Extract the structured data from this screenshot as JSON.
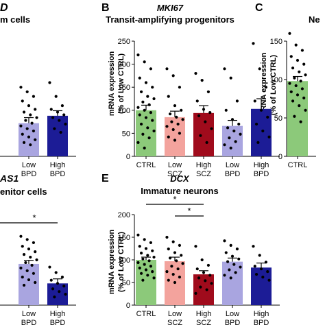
{
  "panel_letters": {
    "a": "",
    "b": "B",
    "c": "C",
    "d": "",
    "e": "E"
  },
  "chart_data": [
    {
      "id": "panel-a",
      "type": "bar",
      "title_italic": "D",
      "title": "m cells",
      "categories": [
        {
          "top": "Low",
          "bottom": "BPD"
        },
        {
          "top": "High",
          "bottom": "BPD"
        }
      ],
      "values": [
        72,
        88
      ],
      "errors": [
        12,
        11
      ],
      "colors": [
        "#a9a5e0",
        "#1c1c96"
      ],
      "ylim": [
        0,
        250
      ],
      "points": [
        [
          150,
          140,
          130,
          120,
          110,
          102,
          96,
          90,
          84,
          78,
          72,
          66,
          60,
          55,
          48,
          42,
          36,
          30,
          25
        ],
        [
          160,
          130,
          110,
          102,
          96,
          90,
          84,
          78,
          70,
          60,
          52
        ]
      ]
    },
    {
      "id": "panel-b",
      "type": "bar",
      "title_italic": "MKI67",
      "title": "Transit-amplifying progenitors",
      "ylabel": "mRNA expression",
      "ylabel2": "(% of Low CTRL)",
      "yticks": [
        0,
        50,
        100,
        150,
        200,
        250
      ],
      "ylim": [
        0,
        250
      ],
      "categories": [
        {
          "top": "CTRL",
          "bottom": ""
        },
        {
          "top": "Low",
          "bottom": "SCZ"
        },
        {
          "top": "High",
          "bottom": "SCZ"
        },
        {
          "top": "Low",
          "bottom": "BPD"
        },
        {
          "top": "High",
          "bottom": "BPD"
        }
      ],
      "values": [
        100,
        85,
        94,
        66,
        103
      ],
      "errors": [
        11,
        13,
        16,
        12,
        22
      ],
      "colors": [
        "#8cc97a",
        "#f3a39d",
        "#a00b1c",
        "#a9a5e0",
        "#1c1c96"
      ],
      "points": [
        [
          220,
          205,
          190,
          170,
          160,
          150,
          140,
          130,
          125,
          118,
          112,
          106,
          100,
          95,
          90,
          84,
          78,
          70,
          62,
          55,
          48,
          40,
          30,
          18
        ],
        [
          190,
          175,
          150,
          130,
          110,
          100,
          92,
          85,
          80,
          75,
          70,
          65,
          58,
          50,
          42,
          35
        ],
        [
          180,
          165,
          140,
          120,
          102,
          95,
          88,
          75,
          60,
          45,
          30
        ],
        [
          190,
          170,
          120,
          100,
          80,
          70,
          62,
          55,
          48,
          40,
          32,
          25,
          18
        ],
        [
          245,
          190,
          150,
          120,
          100,
          85,
          70,
          55,
          42,
          30
        ]
      ]
    },
    {
      "id": "panel-c",
      "type": "bar",
      "title": "Ne",
      "ylabel": "mRNA expression",
      "ylabel2": "(% of Low CTRL)",
      "yticks": [
        0,
        50,
        100,
        150
      ],
      "ylim": [
        0,
        150
      ],
      "categories": [
        {
          "top": "CTRL",
          "bottom": ""
        }
      ],
      "values": [
        98
      ],
      "errors": [
        6
      ],
      "colors": [
        "#8cc97a"
      ],
      "points": [
        [
          160,
          145,
          138,
          130,
          125,
          120,
          115,
          110,
          106,
          102,
          98,
          95,
          92,
          88,
          84,
          80,
          76,
          72,
          66,
          60,
          52,
          45
        ]
      ]
    },
    {
      "id": "panel-d",
      "type": "bar",
      "title_italic": "AS1",
      "title": "enitor cells",
      "categories": [
        {
          "top": "Low",
          "bottom": "BPD"
        },
        {
          "top": "High",
          "bottom": "BPD"
        }
      ],
      "values": [
        91,
        48
      ],
      "errors": [
        8,
        10
      ],
      "colors": [
        "#a9a5e0",
        "#1c1c96"
      ],
      "ylim": [
        0,
        200
      ],
      "significance": [
        {
          "label": "*",
          "from": 0,
          "to": 1
        }
      ],
      "points": [
        [
          152,
          145,
          138,
          130,
          124,
          118,
          112,
          106,
          100,
          94,
          88,
          82,
          76,
          70,
          62,
          56,
          50,
          44
        ],
        [
          84,
          72,
          62,
          55,
          48,
          42,
          36,
          30,
          24,
          18
        ]
      ]
    },
    {
      "id": "panel-e",
      "type": "bar",
      "title_italic": "DCX",
      "title": "Immature neurons",
      "ylabel": "mRNA expression",
      "ylabel2": "(% of Low CTRL)",
      "yticks": [
        0,
        50,
        100,
        150,
        200
      ],
      "ylim": [
        0,
        200
      ],
      "categories": [
        {
          "top": "CTRL",
          "bottom": ""
        },
        {
          "top": "Low",
          "bottom": "SCZ"
        },
        {
          "top": "High",
          "bottom": "SCZ"
        },
        {
          "top": "Low",
          "bottom": "BPD"
        },
        {
          "top": "High",
          "bottom": "BPD"
        }
      ],
      "values": [
        100,
        97,
        68,
        96,
        83
      ],
      "errors": [
        6,
        9,
        8,
        8,
        10
      ],
      "colors": [
        "#8cc97a",
        "#f3a39d",
        "#a00b1c",
        "#a9a5e0",
        "#1c1c96"
      ],
      "significance": [
        {
          "label": "*",
          "from": 0,
          "to": 2
        },
        {
          "label": "*",
          "from": 1,
          "to": 2
        }
      ],
      "points": [
        [
          155,
          145,
          138,
          130,
          125,
          120,
          115,
          110,
          106,
          102,
          98,
          94,
          90,
          86,
          82,
          78,
          74,
          70,
          66,
          60,
          55
        ],
        [
          150,
          140,
          132,
          124,
          116,
          110,
          104,
          98,
          92,
          86,
          80,
          74,
          68,
          62,
          55,
          50
        ],
        [
          130,
          100,
          88,
          80,
          72,
          66,
          60,
          54,
          48,
          40,
          34,
          26
        ],
        [
          142,
          132,
          124,
          116,
          108,
          102,
          96,
          90,
          84,
          78,
          72,
          66,
          60
        ],
        [
          130,
          110,
          95,
          86,
          80,
          74,
          68,
          62,
          55
        ]
      ]
    }
  ]
}
